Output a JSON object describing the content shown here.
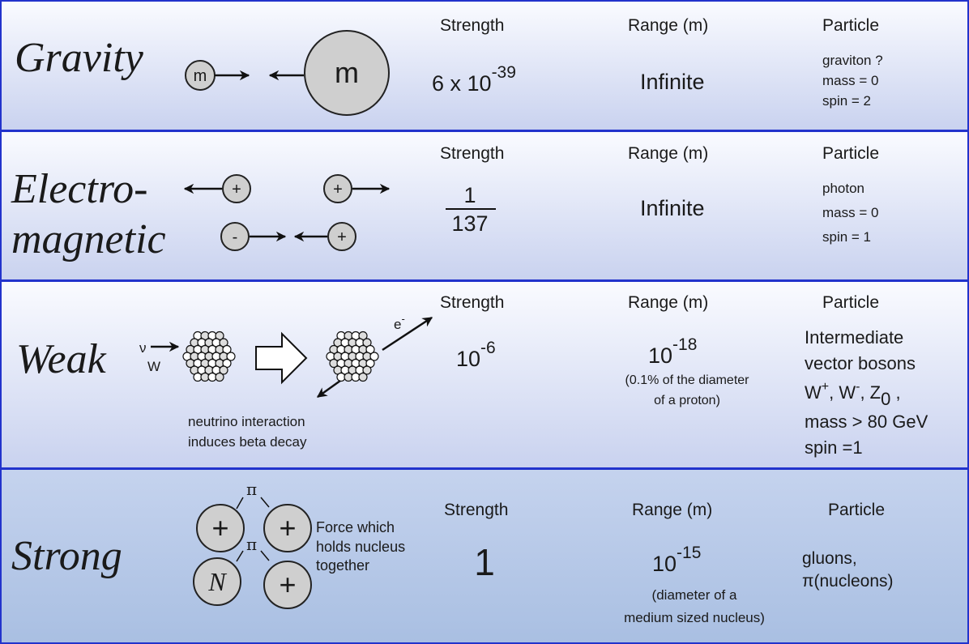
{
  "rows": [
    {
      "force": [
        "Gravity"
      ],
      "diagram": [
        "m",
        "m"
      ],
      "strength_heading": "Strength",
      "strength": [
        "6  x  10",
        "-39"
      ],
      "range_heading": "Range (m)",
      "range": [
        "Infinite"
      ],
      "particle_heading": "Particle",
      "particle": [
        "graviton ?",
        "mass = 0",
        "spin = 2"
      ]
    },
    {
      "force": [
        "Electro-",
        "magnetic"
      ],
      "diagram": [
        "+",
        "+",
        "-",
        "+"
      ],
      "strength_heading": "Strength",
      "strength": [
        "1",
        "137"
      ],
      "range_heading": "Range (m)",
      "range": [
        "Infinite"
      ],
      "particle_heading": "Particle",
      "particle": [
        "photon",
        "mass = 0",
        "spin = 1"
      ]
    },
    {
      "force": [
        "Weak"
      ],
      "diagram": [
        "ν",
        "W",
        "e",
        "-"
      ],
      "caption": [
        "neutrino interaction",
        "induces beta decay"
      ],
      "strength_heading": "Strength",
      "strength": [
        "10",
        "-6"
      ],
      "range_heading": "Range (m)",
      "range": [
        "10",
        "-18",
        "(0.1% of the diameter",
        "of a proton)"
      ],
      "particle_heading": "Particle",
      "particle": [
        "Intermediate",
        "vector bosons",
        "mass > 80 GeV",
        "spin =1"
      ],
      "bosons": [
        "W",
        "+",
        ", W",
        "-",
        ", Z",
        "0",
        " ,"
      ]
    },
    {
      "force": [
        "Strong"
      ],
      "diagram": [
        "π",
        "π",
        "+",
        "+",
        "N",
        "+"
      ],
      "caption": [
        "Force which",
        "holds nucleus",
        "together"
      ],
      "strength_heading": "Strength",
      "strength": [
        "1"
      ],
      "range_heading": "Range (m)",
      "range": [
        "10",
        "-15",
        "(diameter of a",
        "medium sized nucleus)"
      ],
      "particle_heading": "Particle",
      "particle": [
        "gluons,",
        "π(nucleons)"
      ]
    }
  ]
}
